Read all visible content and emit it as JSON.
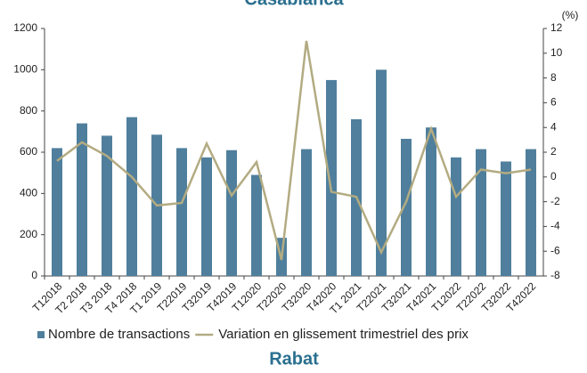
{
  "chart_data": {
    "type": "bar_line",
    "title": "Casablanca",
    "categories": [
      "T12018",
      "T2 2018",
      "T3 2018",
      "T4 2018",
      "T1 2019",
      "T22019",
      "T32019",
      "T42019",
      "T12020",
      "T22020",
      "T32020",
      "T42020",
      "T1 2021",
      "T22021",
      "T32021",
      "T42021",
      "T12022",
      "T22022",
      "T32022",
      "T42022"
    ],
    "series": [
      {
        "name": "Nombre de transactions",
        "color": "#4f7f9c",
        "type": "bar",
        "values": [
          620,
          740,
          680,
          770,
          685,
          620,
          575,
          610,
          490,
          185,
          615,
          950,
          760,
          1000,
          665,
          720,
          575,
          615,
          555,
          615
        ]
      },
      {
        "name": "Variation en glissement trimestriel des prix",
        "color": "#b3ab82",
        "type": "line",
        "axis": "y2",
        "values": [
          1.3,
          2.8,
          1.7,
          0,
          -2.3,
          -2.1,
          2.7,
          -1.5,
          1.2,
          -6.7,
          11,
          -1.2,
          -1.6,
          -6.1,
          -2,
          3.9,
          -1.6,
          0.6,
          0.3,
          0.6
        ]
      }
    ],
    "ylim": [
      0,
      1200
    ],
    "yticks": [
      0,
      200,
      400,
      600,
      800,
      1000,
      1200
    ],
    "y2lim": [
      -8,
      12
    ],
    "y2ticks": [
      -8,
      -6,
      -4,
      -2,
      0,
      2,
      4,
      6,
      8,
      10,
      12
    ],
    "y2label": "(%)",
    "legend": "bottom"
  },
  "next_chart": {
    "title": "Rabat"
  }
}
